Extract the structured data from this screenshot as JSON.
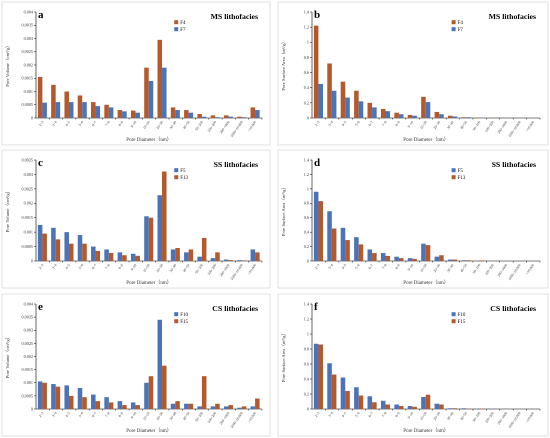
{
  "colors": {
    "orange": "#b3592b",
    "blue": "#4a73b8"
  },
  "categories": [
    "2~3",
    "3~4",
    "4~5",
    "5~6",
    "6~7",
    "7~8",
    "8~9",
    "9~10",
    "10~20",
    "20~30",
    "30~40",
    "40~50",
    "50~100",
    "100~200",
    "200~1000",
    "1000~10,000",
    ">10,000"
  ],
  "chart_data": [
    {
      "type": "bar",
      "letter": "a",
      "title": "MS lithofacies",
      "xlabel": "Pore Diameter（nm）",
      "ylabel": "Pore Volume（cm³/g）",
      "ylim": [
        0,
        0.004
      ],
      "yticks": [
        "0",
        "0.0005",
        "0.001",
        "0.0015",
        "0.002",
        "0.0025",
        "0.003",
        "0.0035",
        "0.004"
      ],
      "series": [
        {
          "name": "F4",
          "color": "orange",
          "values": [
            0.00155,
            0.00125,
            0.001,
            0.00085,
            0.0006,
            0.0005,
            0.0003,
            0.00028,
            0.0019,
            0.00295,
            0.0004,
            0.0003,
            0.00015,
            0.0001,
            0.0001,
            5e-05,
            0.0004
          ]
        },
        {
          "name": "F7",
          "color": "blue",
          "values": [
            0.00058,
            0.0006,
            0.0006,
            0.0006,
            0.00045,
            0.0004,
            0.00025,
            0.0002,
            0.0014,
            0.0019,
            0.0003,
            0.0002,
            5e-05,
            3e-05,
            5e-05,
            3e-05,
            0.0003
          ]
        }
      ]
    },
    {
      "type": "bar",
      "letter": "b",
      "title": "MS lithofacies",
      "xlabel": "Pore Diameter（nm）",
      "ylabel": "Pore Surface Area（m²/g）",
      "ylim": [
        0,
        1.4
      ],
      "yticks": [
        "0",
        "0.2",
        "0.4",
        "0.6",
        "0.8",
        "1",
        "1.2",
        "1.4"
      ],
      "series": [
        {
          "name": "F4",
          "color": "orange",
          "values": [
            1.22,
            0.72,
            0.48,
            0.36,
            0.2,
            0.12,
            0.07,
            0.04,
            0.28,
            0.08,
            0.03,
            0.01,
            0.005,
            0.003,
            0.002,
            0.001,
            0.001
          ]
        },
        {
          "name": "F7",
          "color": "blue",
          "values": [
            0.45,
            0.36,
            0.27,
            0.22,
            0.14,
            0.09,
            0.05,
            0.03,
            0.21,
            0.05,
            0.02,
            0.01,
            0.004,
            0.002,
            0.001,
            0.001,
            0.001
          ]
        }
      ]
    },
    {
      "type": "bar",
      "letter": "c",
      "title": "SS lithofacies",
      "xlabel": "Pore Diameter（nm）",
      "ylabel": "Pore Volume（cm³/g）",
      "ylim": [
        0,
        0.0035
      ],
      "yticks": [
        "0",
        "0.0005",
        "0.001",
        "0.0015",
        "0.002",
        "0.0025",
        "0.003",
        "0.0035"
      ],
      "series": [
        {
          "name": "F5",
          "color": "blue",
          "values": [
            0.00125,
            0.00115,
            0.001,
            0.0009,
            0.0005,
            0.0004,
            0.0003,
            0.00025,
            0.00155,
            0.00228,
            0.0004,
            0.0003,
            0.00015,
            0.0001,
            5e-05,
            3e-05,
            0.0004
          ]
        },
        {
          "name": "F13",
          "color": "orange",
          "values": [
            0.00095,
            0.00075,
            0.0006,
            0.0006,
            0.00035,
            0.00028,
            0.0002,
            0.00018,
            0.0015,
            0.0031,
            0.00045,
            0.0004,
            0.0008,
            0.0003,
            3e-05,
            2e-05,
            0.0003
          ]
        }
      ]
    },
    {
      "type": "bar",
      "letter": "d",
      "title": "SS lithofacies",
      "xlabel": "Pore Diameter（nm）",
      "ylabel": "Pore Surface Area（m²/g）",
      "ylim": [
        0,
        1.4
      ],
      "yticks": [
        "0",
        "0.2",
        "0.4",
        "0.6",
        "0.8",
        "1",
        "1.2",
        "1.4"
      ],
      "series": [
        {
          "name": "F5",
          "color": "blue",
          "values": [
            0.96,
            0.69,
            0.46,
            0.33,
            0.16,
            0.11,
            0.06,
            0.04,
            0.24,
            0.06,
            0.02,
            0.01,
            0.005,
            0.002,
            0.001,
            0.001,
            0.001
          ]
        },
        {
          "name": "F13",
          "color": "orange",
          "values": [
            0.83,
            0.45,
            0.29,
            0.23,
            0.11,
            0.07,
            0.04,
            0.03,
            0.22,
            0.08,
            0.02,
            0.01,
            0.008,
            0.003,
            0.001,
            0.001,
            0.001
          ]
        }
      ]
    },
    {
      "type": "bar",
      "letter": "e",
      "title": "CS lithofacies",
      "xlabel": "Pore Diameter（nm）",
      "ylabel": "Pore Volume（cm³/g）",
      "ylim": [
        0,
        0.004
      ],
      "yticks": [
        "0",
        "0.0005",
        "0.001",
        "0.0015",
        "0.002",
        "0.0025",
        "0.003",
        "0.0035",
        "0.004"
      ],
      "series": [
        {
          "name": "F10",
          "color": "blue",
          "values": [
            0.00105,
            0.00095,
            0.0009,
            0.0008,
            0.00055,
            0.00045,
            0.0003,
            0.00025,
            0.001,
            0.0034,
            0.0002,
            0.0002,
            0.0001,
            0.0001,
            0.0001,
            5e-05,
            0.0001
          ]
        },
        {
          "name": "F15",
          "color": "orange",
          "values": [
            0.001,
            0.00085,
            0.0005,
            0.00045,
            0.0003,
            0.00025,
            0.00015,
            0.00015,
            0.00125,
            0.00165,
            0.0003,
            0.0002,
            0.00125,
            0.0002,
            0.00015,
            0.0001,
            0.0004
          ]
        }
      ]
    },
    {
      "type": "bar",
      "letter": "f",
      "title": "CS lithofacies",
      "xlabel": "Pore Diameter（nm）",
      "ylabel": "Pore Surface Area（m²/g）",
      "ylim": [
        0,
        1.4
      ],
      "yticks": [
        "0",
        "0.2",
        "0.4",
        "0.6",
        "0.8",
        "1",
        "1.2",
        "1.4"
      ],
      "series": [
        {
          "name": "F10",
          "color": "blue",
          "values": [
            0.87,
            0.61,
            0.42,
            0.29,
            0.17,
            0.11,
            0.06,
            0.04,
            0.16,
            0.07,
            0.01,
            0.01,
            0.005,
            0.002,
            0.001,
            0.001,
            0.001
          ]
        },
        {
          "name": "F15",
          "color": "orange",
          "values": [
            0.86,
            0.46,
            0.24,
            0.18,
            0.09,
            0.06,
            0.04,
            0.03,
            0.19,
            0.06,
            0.01,
            0.005,
            0.005,
            0.002,
            0.001,
            0.001,
            0.001
          ]
        }
      ]
    }
  ]
}
